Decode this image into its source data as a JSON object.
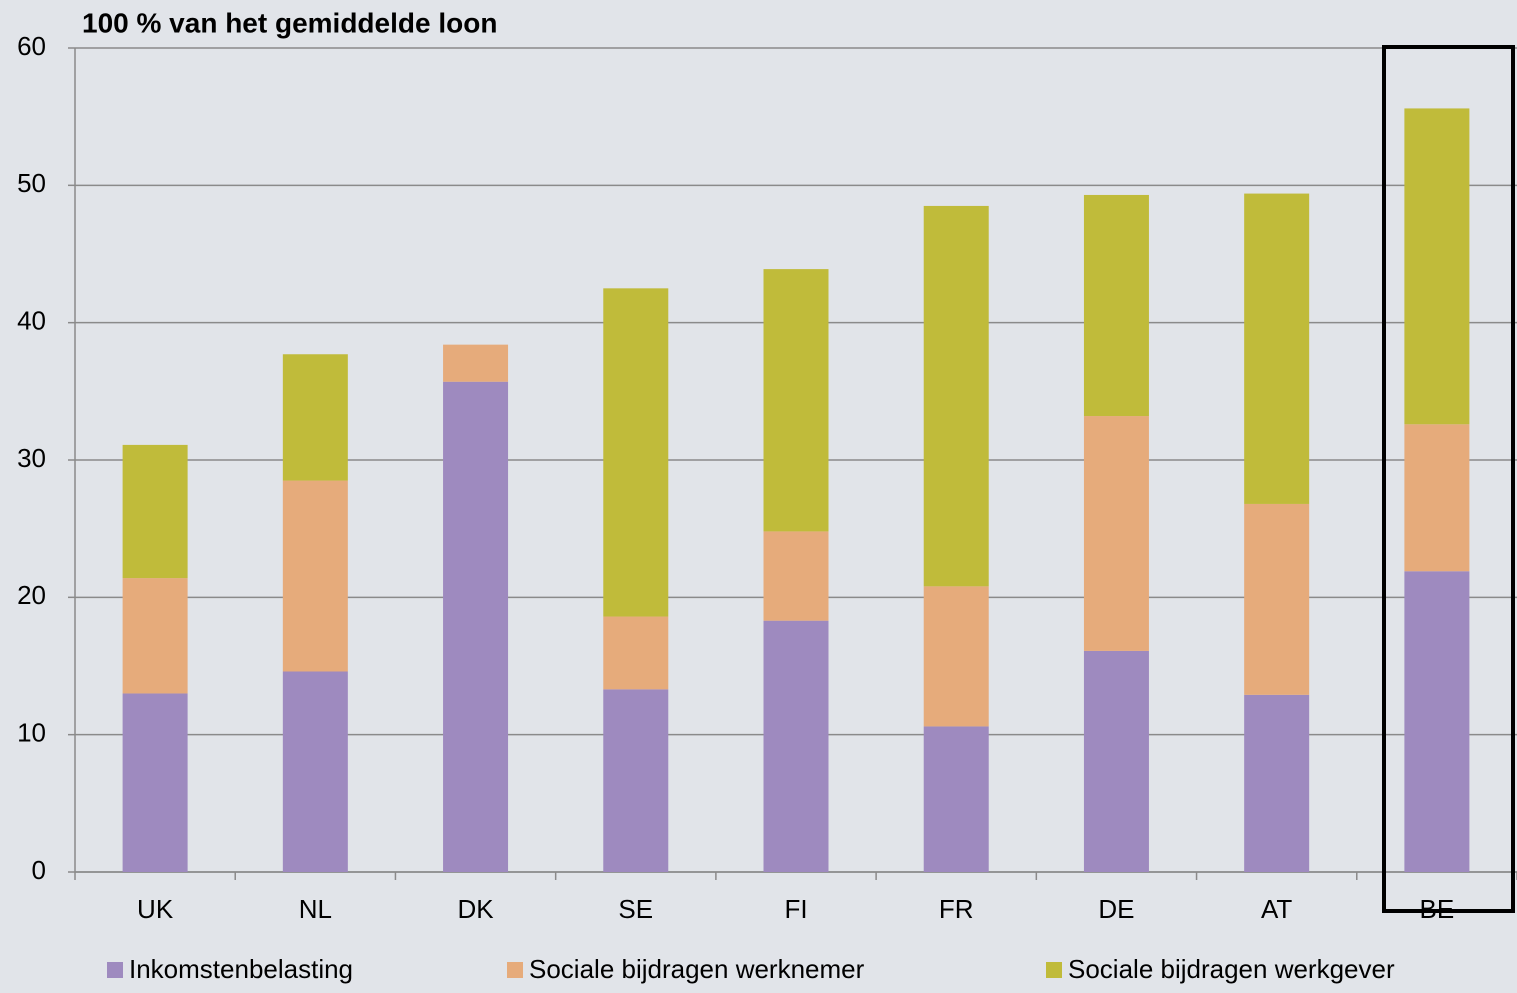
{
  "chart_data": {
    "type": "stacked_bar",
    "title": "100 % van het gemiddelde loon",
    "categories": [
      "UK",
      "NL",
      "DK",
      "SE",
      "FI",
      "FR",
      "DE",
      "AT",
      "BE"
    ],
    "series": [
      {
        "name": "Inkomstenbelasting",
        "color": "#9e8abf",
        "values": [
          13.0,
          14.6,
          35.7,
          13.3,
          18.3,
          10.6,
          16.1,
          12.9,
          21.9
        ]
      },
      {
        "name": "Sociale bijdragen werknemer",
        "color": "#e6ab7b",
        "values": [
          8.4,
          13.9,
          2.7,
          5.3,
          6.5,
          10.2,
          17.1,
          13.9,
          10.7
        ]
      },
      {
        "name": "Sociale bijdragen werkgever",
        "color": "#c0bb3a",
        "values": [
          9.7,
          9.2,
          0,
          23.9,
          19.1,
          27.7,
          16.1,
          22.6,
          23.0
        ]
      }
    ],
    "ylim": [
      0,
      60
    ],
    "yticks": [
      0,
      10,
      20,
      30,
      40,
      50,
      60
    ],
    "grid": true
  }
}
